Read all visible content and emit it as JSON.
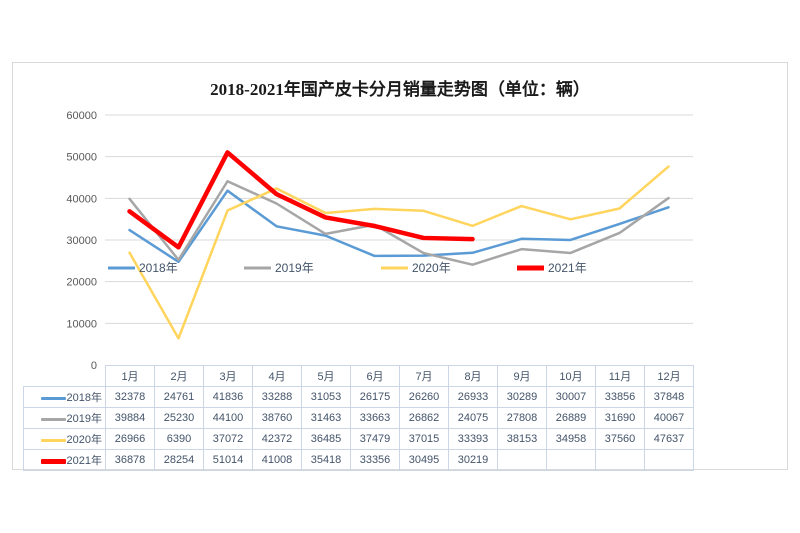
{
  "chart_data": {
    "type": "line",
    "title": "2018-2021年国产皮卡分月销量走势图（单位：辆）",
    "categories": [
      "1月",
      "2月",
      "3月",
      "4月",
      "5月",
      "6月",
      "7月",
      "8月",
      "9月",
      "10月",
      "11月",
      "12月"
    ],
    "series": [
      {
        "name": "2018年",
        "color": "#5B9BD5",
        "stroke_width": 2.5,
        "values": [
          32378,
          24761,
          41836,
          33288,
          31053,
          26175,
          26260,
          26933,
          30289,
          30007,
          33856,
          37848
        ]
      },
      {
        "name": "2019年",
        "color": "#A6A6A6",
        "stroke_width": 2.5,
        "values": [
          39884,
          25230,
          44100,
          38760,
          31463,
          33663,
          26862,
          24075,
          27808,
          26889,
          31690,
          40067
        ]
      },
      {
        "name": "2020年",
        "color": "#FFD55E",
        "stroke_width": 2.5,
        "values": [
          26966,
          6390,
          37072,
          42372,
          36485,
          37479,
          37015,
          33393,
          38153,
          34958,
          37560,
          47637
        ]
      },
      {
        "name": "2021年",
        "color": "#FE0000",
        "stroke_width": 4.5,
        "values": [
          36878,
          28254,
          51014,
          41008,
          35418,
          33356,
          30495,
          30219,
          null,
          null,
          null,
          null
        ]
      }
    ],
    "y_axis": {
      "min": 0,
      "max": 60000,
      "step": 10000,
      "tick_labels": [
        "0",
        "10000",
        "20000",
        "30000",
        "40000",
        "50000",
        "60000"
      ]
    },
    "grid": true,
    "legend_position": "inside-middle-horizontal",
    "legend_entries": [
      "2018年",
      "2019年",
      "2020年",
      "2021年"
    ]
  },
  "colors": {
    "gridline": "#D9D9D9",
    "axis_text": "#595959",
    "legend_text": "#44546A",
    "table_border": "#CBD7E6",
    "table_text": "#44546A",
    "chart_border": "#D9D9D9"
  }
}
